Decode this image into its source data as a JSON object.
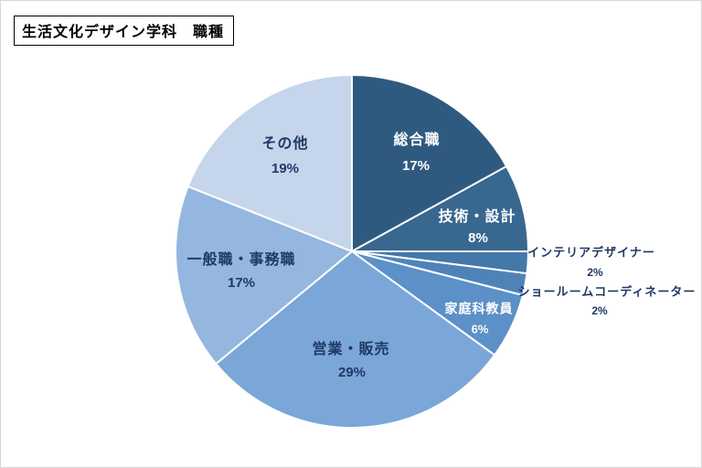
{
  "page": {
    "title": "生活文化デザイン学科　職種"
  },
  "chart_data": {
    "type": "pie",
    "title": "生活文化デザイン学科　職種",
    "unit": "%",
    "start_angle_deg": 0,
    "direction": "clockwise",
    "legend": "none",
    "labels_on_chart": true,
    "slices": [
      {
        "label": "総合職",
        "value": 17,
        "pct_label": "17%",
        "color": "#2F5A80",
        "text_color": "#FFFFFF",
        "label_placement": "inside"
      },
      {
        "label": "技術・設計",
        "value": 8,
        "pct_label": "8%",
        "color": "#38678F",
        "text_color": "#FFFFFF",
        "label_placement": "inside"
      },
      {
        "label": "インテリアデザイナー",
        "value": 2,
        "pct_label": "2%",
        "color": "#4478A8",
        "text_color": "#1F3864",
        "label_placement": "outside"
      },
      {
        "label": "ショールームコーディネーター",
        "value": 2,
        "pct_label": "2%",
        "color": "#4F83B8",
        "text_color": "#1F3864",
        "label_placement": "outside"
      },
      {
        "label": "家庭科教員",
        "value": 6,
        "pct_label": "6%",
        "color": "#5C90C8",
        "text_color": "#FFFFFF",
        "label_placement": "inside"
      },
      {
        "label": "営業・販売",
        "value": 29,
        "pct_label": "29%",
        "color": "#7AA7D8",
        "text_color": "#1F3864",
        "label_placement": "inside"
      },
      {
        "label": "一般職・事務職",
        "value": 17,
        "pct_label": "17%",
        "color": "#95B7DF",
        "text_color": "#1F3864",
        "label_placement": "inside"
      },
      {
        "label": "その他",
        "value": 19,
        "pct_label": "19%",
        "color": "#C5D5EC",
        "text_color": "#1F3864",
        "label_placement": "inside"
      }
    ]
  },
  "colors": {
    "slice_border": "#FFFFFF",
    "dark_label": "#1F3864",
    "light_label": "#FFFFFF",
    "page_border": "#D6D6D6",
    "title_border": "#000000"
  }
}
